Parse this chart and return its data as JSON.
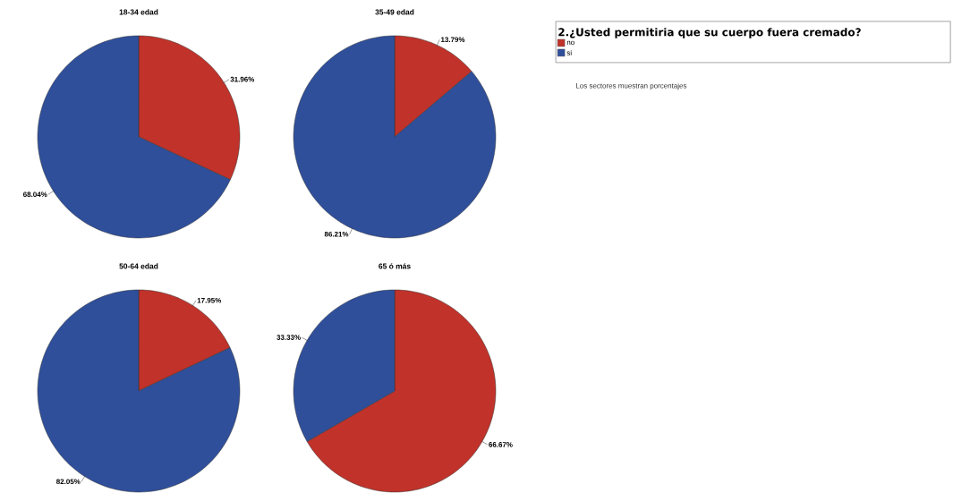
{
  "chart_data": [
    {
      "type": "pie",
      "title": "18-34 edad",
      "categories": [
        null,
        null
      ],
      "values": [
        31.96,
        68.04
      ],
      "colors": [
        "#c0322a",
        "#2f4f9b"
      ],
      "value_labels": [
        "31.96%",
        "68.04%"
      ]
    },
    {
      "type": "pie",
      "title": "35-49 edad",
      "categories": [
        "no",
        "si"
      ],
      "values": [
        13.79,
        86.21
      ],
      "colors": [
        "#c0322a",
        "#2f4f9b"
      ],
      "value_labels": [
        "13.79%",
        "86.21%"
      ],
      "legend_title": "2.¿Usted permitiria que su cuerpo fuera cremado?",
      "legend": "right",
      "annotations": [
        "Los sectores muestran porcentajes"
      ]
    },
    {
      "type": "pie",
      "title": "50-64 edad",
      "categories": [
        null,
        null
      ],
      "values": [
        17.95,
        82.05
      ],
      "colors": [
        "#c0322a",
        "#2f4f9b"
      ],
      "value_labels": [
        "17.95%",
        "82.05%"
      ]
    },
    {
      "type": "pie",
      "title": "65 ó más",
      "categories": [
        null,
        null
      ],
      "values": [
        66.67,
        33.33
      ],
      "colors": [
        "#c0322a",
        "#2f4f9b"
      ],
      "value_labels": [
        "66.67%",
        "33.33%"
      ]
    }
  ]
}
